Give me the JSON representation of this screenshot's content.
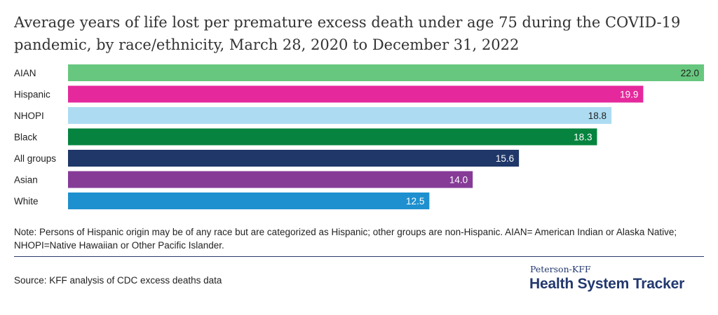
{
  "title": "Average years of life lost per premature excess death under age 75 during the COVID-19 pandemic, by race/ethnicity, March 28, 2020 to December 31, 2022",
  "note": "Note: Persons of Hispanic origin may be of any race but are categorized as Hispanic; other groups are non-Hispanic. AIAN= American Indian or Alaska Native; NHOPI=Native Hawaiian or Other Pacific Islander.",
  "source": "Source: KFF analysis of CDC excess deaths data",
  "brand": {
    "top": "Peterson-KFF",
    "main": "Health System Tracker"
  },
  "chart_data": {
    "type": "bar",
    "orientation": "horizontal",
    "categories": [
      "AIAN",
      "Hispanic",
      "NHOPI",
      "Black",
      "All groups",
      "Asian",
      "White"
    ],
    "values": [
      22.0,
      19.9,
      18.8,
      18.3,
      15.6,
      14.0,
      12.5
    ],
    "labels": [
      "22.0",
      "19.9",
      "18.8",
      "18.3",
      "15.6",
      "14.0",
      "12.5"
    ],
    "colors": [
      "#67c77e",
      "#e5299c",
      "#addcf2",
      "#06843f",
      "#1f3769",
      "#863b97",
      "#1f90cf"
    ],
    "label_colors": [
      "#1f1f1f",
      "#ffffff",
      "#1f1f1f",
      "#ffffff",
      "#ffffff",
      "#ffffff",
      "#ffffff"
    ],
    "xlim": [
      0,
      22.0
    ],
    "grid": false,
    "legend": "none"
  }
}
